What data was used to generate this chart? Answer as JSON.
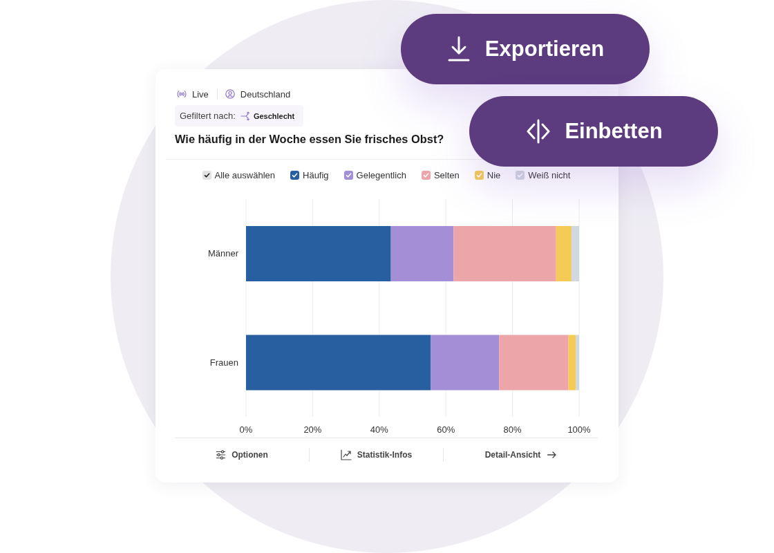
{
  "chart_data": {
    "type": "bar",
    "orientation": "horizontal",
    "stacked": true,
    "title": "Wie häufig in der Woche essen Sie frisches Obst?",
    "categories": [
      "Männer",
      "Frauen"
    ],
    "series": [
      {
        "name": "Häufig",
        "color": "#275fa0",
        "values": [
          43.5,
          55.5
        ]
      },
      {
        "name": "Gelegentlich",
        "color": "#a48ed6",
        "values": [
          18.8,
          20.5
        ]
      },
      {
        "name": "Selten",
        "color": "#eca5a9",
        "values": [
          30.8,
          20.8
        ]
      },
      {
        "name": "Nie",
        "color": "#f5cb55",
        "values": [
          4.6,
          2.2
        ]
      },
      {
        "name": "Weiß nicht",
        "color": "#d2d8df",
        "values": [
          2.3,
          1.0
        ]
      }
    ],
    "xlim": [
      0,
      100
    ],
    "xticks": [
      {
        "value": 0,
        "label": "0%"
      },
      {
        "value": 20,
        "label": "20%"
      },
      {
        "value": 40,
        "label": "40%"
      },
      {
        "value": 60,
        "label": "60%"
      },
      {
        "value": 80,
        "label": "80%"
      },
      {
        "value": 100,
        "label": "100%"
      }
    ],
    "grid": "x",
    "legend": "top",
    "legend_title": "Alle auswählen",
    "annotations": [
      "Live",
      "Deutschland",
      "Gefiltert nach:",
      "Geschlecht",
      "Exportieren",
      "Einbetten",
      "Optionen",
      "Statistik-Infos",
      "Detail-Ansicht"
    ]
  }
}
